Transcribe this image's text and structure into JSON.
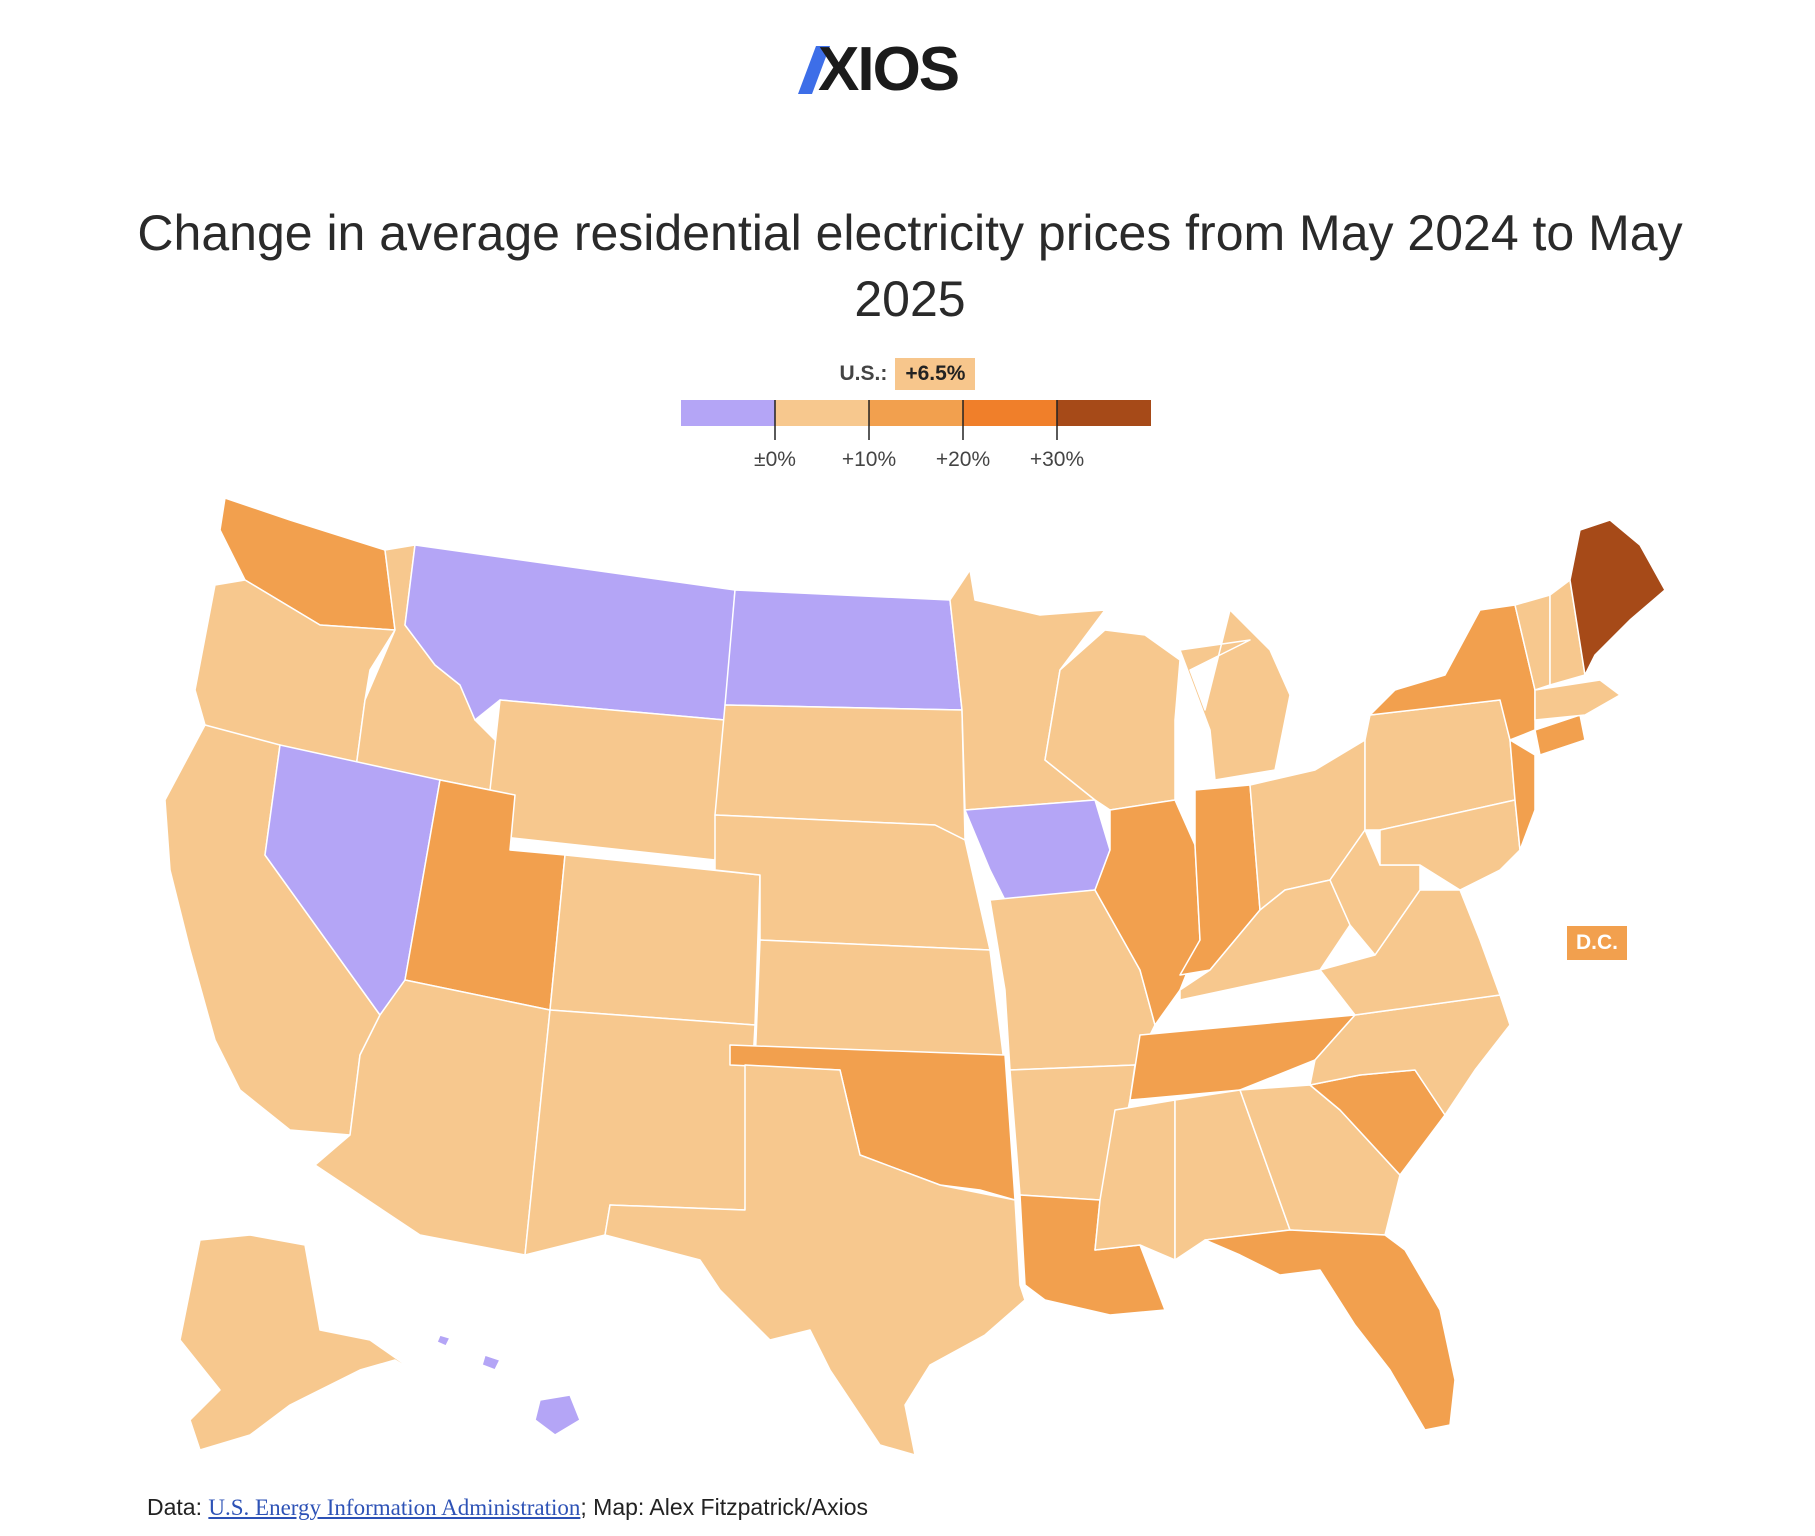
{
  "logo": {
    "text": "AXIOS"
  },
  "title": "Change in average residential electricity prices from May 2024 to May 2025",
  "us_summary": {
    "label": "U.S.:",
    "value": "+6.5%"
  },
  "legend": {
    "bins": [
      {
        "color": "#b4a5f6"
      },
      {
        "color": "#f7c88e"
      },
      {
        "color": "#f2a04e"
      },
      {
        "color": "#f07f2a"
      },
      {
        "color": "#a64a18"
      }
    ],
    "ticks": [
      "±0%",
      "+10%",
      "+20%",
      "+30%"
    ]
  },
  "map_legend_colors": {
    "decrease": "#b4a5f6",
    "0-10": "#f7c88e",
    "10-20": "#f2a04e",
    "20-30": "#f07f2a",
    "30plus": "#a64a18"
  },
  "dc_label": "D.C.",
  "footer": {
    "prefix": "Data: ",
    "source_link": "U.S. Energy Information Administration",
    "suffix": "; Map: Alex Fitzpatrick/Axios"
  }
}
